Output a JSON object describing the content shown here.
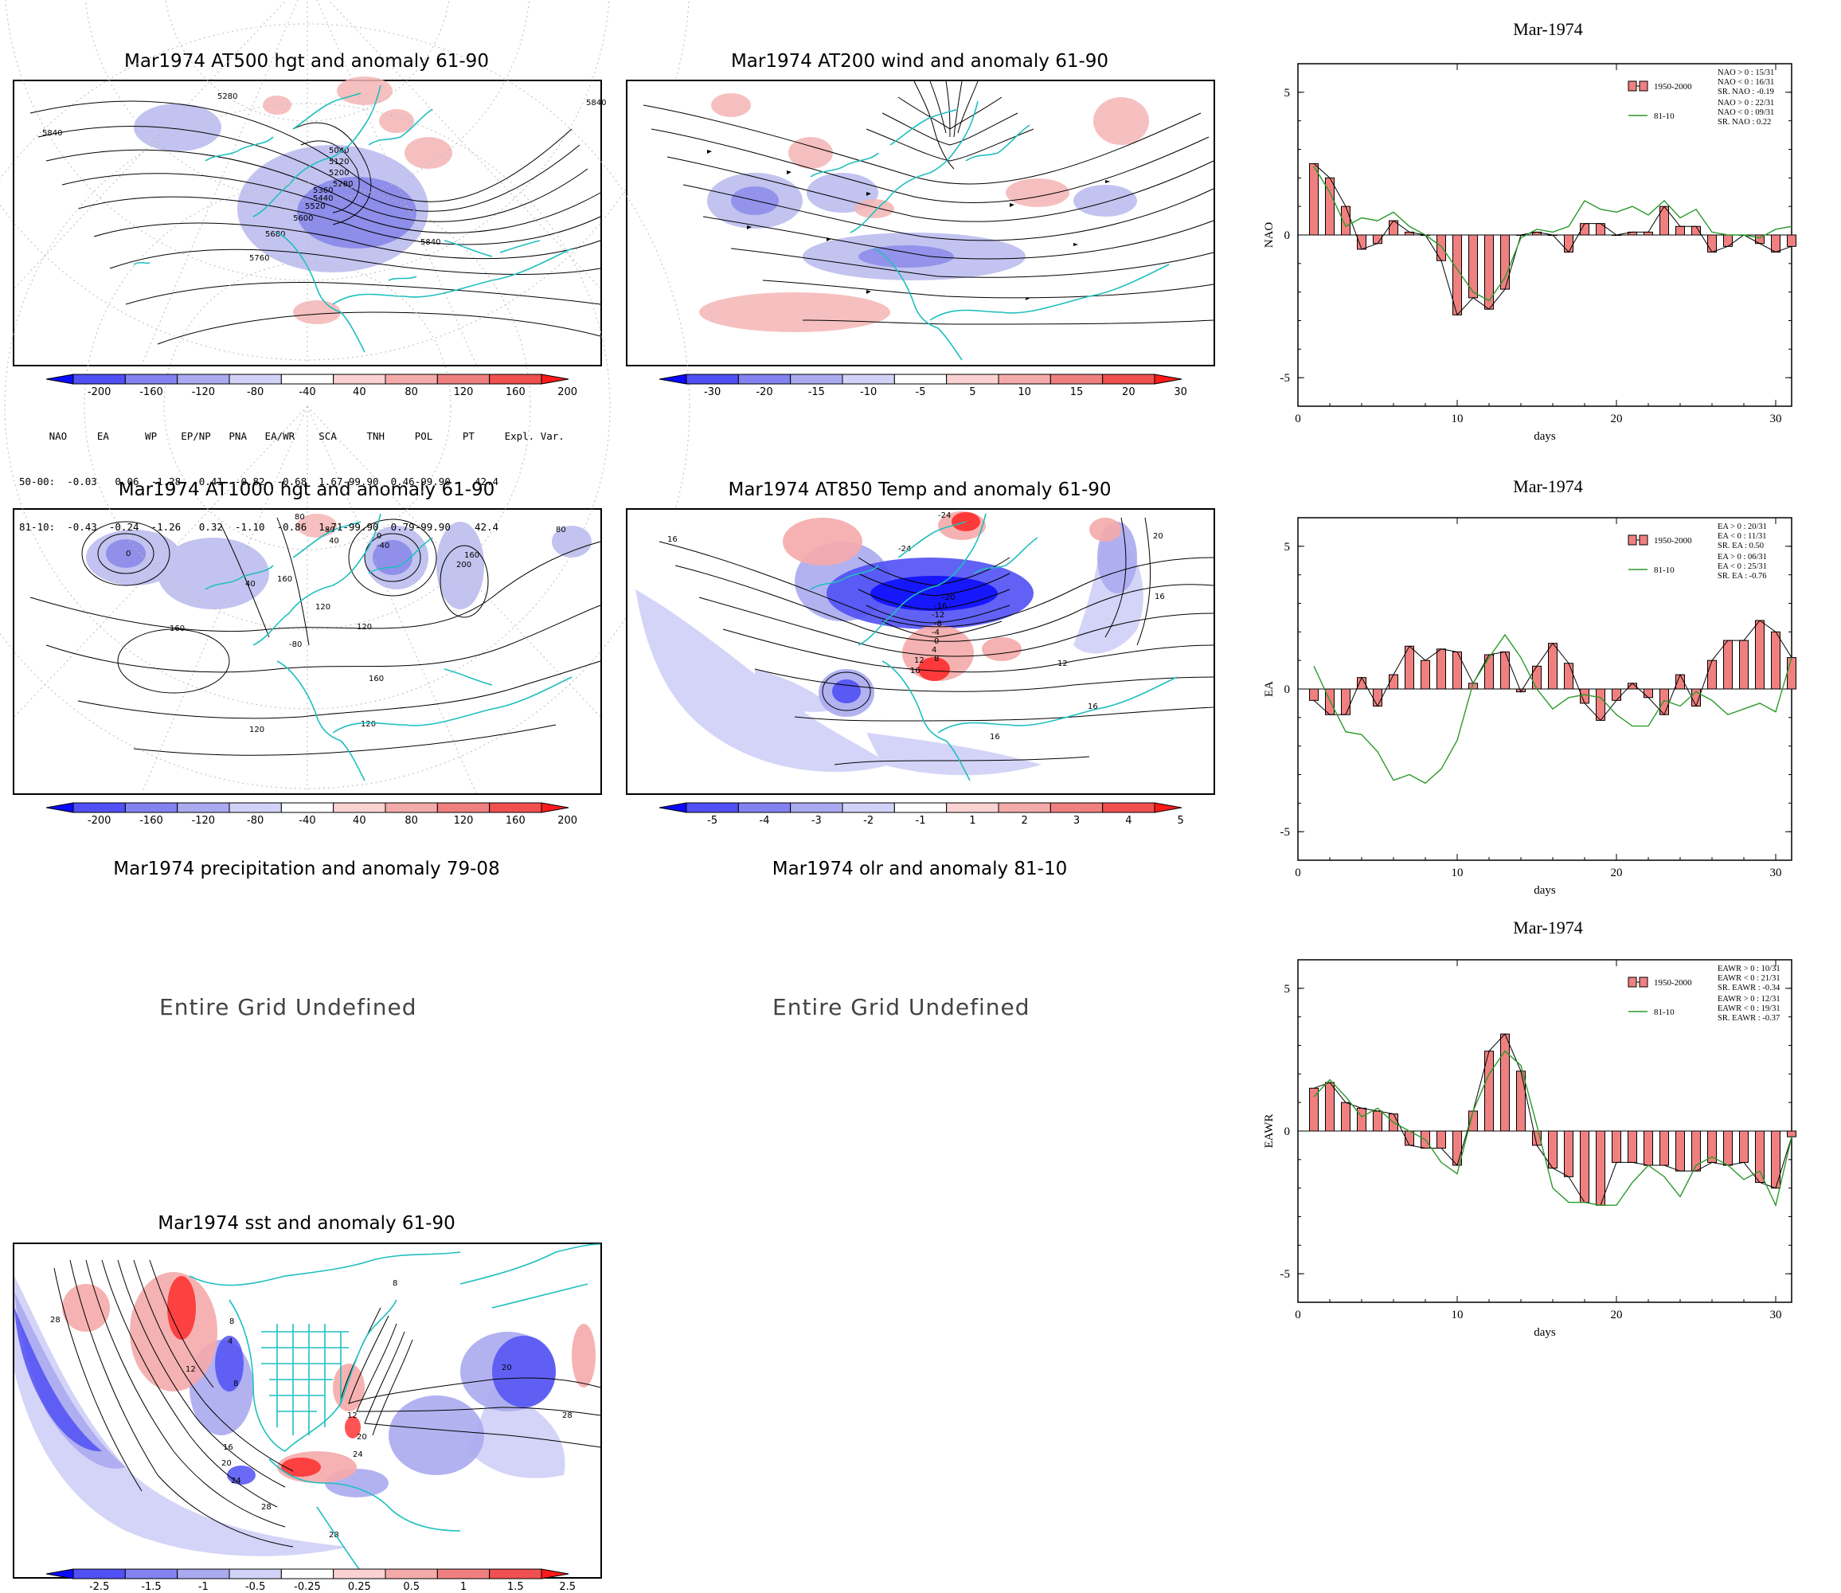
{
  "maps": {
    "z500": {
      "title": "Mar1974 AT500 hgt and anomaly 61-90",
      "contour_labels": [
        "5280",
        "5840",
        "5040",
        "5120",
        "5200",
        "5280",
        "5360",
        "5440",
        "5520",
        "5600",
        "5680",
        "5760",
        "5840",
        "5840"
      ]
    },
    "wind200": {
      "title": "Mar1974 AT200 wind and anomaly 61-90"
    },
    "z1000": {
      "title": "Mar1974 AT1000 hgt and anomaly 61-90",
      "contour_labels": [
        "0",
        "80",
        "80",
        "40",
        "0",
        "-40",
        "160",
        "200",
        "40",
        "160",
        "120",
        "120",
        "-80",
        "160",
        "80",
        "120",
        "120",
        "160"
      ]
    },
    "t850": {
      "title": "Mar1974 AT850 Temp and anomaly 61-90",
      "contour_labels": [
        "16",
        "-24",
        "-24",
        "20",
        "-20",
        "-16",
        "-12",
        "-8",
        "-4",
        "0",
        "4",
        "8",
        "12",
        "16",
        "12",
        "16",
        "16",
        "16"
      ]
    },
    "precip": {
      "title": "Mar1974 precipitation and anomaly 79-08",
      "message": "Entire Grid Undefined"
    },
    "olr": {
      "title": "Mar1974 olr and anomaly 81-10",
      "message": "Entire Grid Undefined"
    },
    "sst": {
      "title": "Mar1974 sst and anomaly 61-90",
      "contour_labels": [
        "28",
        "8",
        "12",
        "4",
        "8",
        "16",
        "20",
        "24",
        "28",
        "12",
        "20",
        "24",
        "28",
        "8",
        "20",
        "28"
      ]
    }
  },
  "colorbars": {
    "hgt": [
      "-200",
      "-160",
      "-120",
      "-80",
      "-40",
      "40",
      "80",
      "120",
      "160",
      "200"
    ],
    "wind": [
      "-30",
      "-20",
      "-15",
      "-10",
      "-5",
      "5",
      "10",
      "15",
      "20",
      "30"
    ],
    "temp": [
      "-5",
      "-4",
      "-3",
      "-2",
      "-1",
      "1",
      "2",
      "3",
      "4",
      "5"
    ],
    "sst": [
      "-2.5",
      "-1.5",
      "-1",
      "-0.5",
      "-0.25",
      "0.25",
      "0.5",
      "1",
      "1.5",
      "2.5"
    ]
  },
  "colorbar_colors": [
    "#0a0aff",
    "#5050f5",
    "#8282f0",
    "#aaaaf0",
    "#d2d2f8",
    "#ffffff",
    "#fad2d2",
    "#f5aaaa",
    "#f08080",
    "#f05050",
    "#ff1a1a"
  ],
  "index_table": {
    "header": "     NAO     EA      WP    EP/NP   PNA   EA/WR    SCA     TNH     POL     PT     Expl. Var.",
    "row1": "50-00:  -0.03   0.06  -1.28   0.41  -0.82  -0.68  1.67-99.90  0.46-99.90    42.4",
    "row2": "81-10:  -0.43  -0.24  -1.26   0.32  -1.10  -0.86  1.71-99.90  0.79-99.90    42.4"
  },
  "chart_data": [
    {
      "type": "bar",
      "title": "Mar-1974",
      "xlabel": "days",
      "ylabel": "NAO",
      "xlim": [
        0,
        31
      ],
      "ylim": [
        -6,
        6
      ],
      "xticks": [
        "0",
        "10",
        "20",
        "30"
      ],
      "yticks": [
        "5",
        "0",
        "-5"
      ],
      "legend": {
        "bar": "1950-2000",
        "line": "81-10",
        "stats_bar": [
          "NAO > 0 : 15/31",
          "NAO < 0 : 16/31",
          "SR. NAO : -0.19"
        ],
        "stats_line": [
          "NAO > 0 : 22/31",
          "NAO < 0 : 09/31",
          "SR. NAO :  0.22"
        ]
      },
      "x": [
        1,
        2,
        3,
        4,
        5,
        6,
        7,
        8,
        9,
        10,
        11,
        12,
        13,
        14,
        15,
        16,
        17,
        18,
        19,
        20,
        21,
        22,
        23,
        24,
        25,
        26,
        27,
        28,
        29,
        30,
        31
      ],
      "series": [
        {
          "name": "1950-2000",
          "values": [
            2.5,
            2.0,
            1.0,
            -0.5,
            -0.3,
            0.5,
            0.1,
            0.0,
            -0.9,
            -2.8,
            -2.2,
            -2.6,
            -1.9,
            0.0,
            0.1,
            0.0,
            -0.6,
            0.4,
            0.4,
            0.0,
            0.1,
            0.1,
            1.0,
            0.3,
            0.3,
            -0.6,
            -0.4,
            0.0,
            -0.3,
            -0.6,
            -0.4
          ]
        },
        {
          "name": "81-10",
          "values": [
            2.4,
            1.5,
            0.3,
            0.6,
            0.5,
            0.8,
            0.3,
            0.0,
            -0.4,
            -1.2,
            -2.0,
            -2.3,
            -1.5,
            -0.1,
            0.2,
            0.1,
            0.3,
            1.2,
            0.9,
            0.8,
            1.0,
            0.7,
            1.2,
            0.6,
            0.9,
            0.1,
            0.0,
            0.0,
            -0.1,
            0.2,
            0.3
          ]
        }
      ]
    },
    {
      "type": "bar",
      "title": "Mar-1974",
      "xlabel": "days",
      "ylabel": "EA",
      "xlim": [
        0,
        31
      ],
      "ylim": [
        -6,
        6
      ],
      "xticks": [
        "0",
        "10",
        "20",
        "30"
      ],
      "yticks": [
        "5",
        "0",
        "-5"
      ],
      "legend": {
        "bar": "1950-2000",
        "line": "81-10",
        "stats_bar": [
          "EA > 0 : 20/31",
          "EA < 0 : 11/31",
          "SR. EA :  0.50"
        ],
        "stats_line": [
          "EA > 0 : 06/31",
          "EA < 0 : 25/31",
          "SR. EA : -0.76"
        ]
      },
      "x": [
        1,
        2,
        3,
        4,
        5,
        6,
        7,
        8,
        9,
        10,
        11,
        12,
        13,
        14,
        15,
        16,
        17,
        18,
        19,
        20,
        21,
        22,
        23,
        24,
        25,
        26,
        27,
        28,
        29,
        30,
        31
      ],
      "series": [
        {
          "name": "1950-2000",
          "values": [
            -0.4,
            -0.9,
            -0.9,
            0.4,
            -0.6,
            0.5,
            1.5,
            1.0,
            1.4,
            1.3,
            0.2,
            1.2,
            1.3,
            -0.1,
            0.8,
            1.6,
            0.9,
            -0.5,
            -1.1,
            -0.4,
            0.2,
            -0.3,
            -0.9,
            0.5,
            -0.6,
            1.0,
            1.7,
            1.7,
            2.4,
            2.0,
            1.1
          ]
        },
        {
          "name": "81-10",
          "values": [
            0.8,
            -0.4,
            -1.5,
            -1.6,
            -2.2,
            -3.2,
            -3.0,
            -3.3,
            -2.8,
            -1.8,
            0.2,
            1.1,
            1.9,
            1.1,
            0.0,
            -0.7,
            -0.3,
            -0.2,
            -0.3,
            -0.9,
            -1.3,
            -1.3,
            -0.4,
            -0.6,
            -0.1,
            -0.4,
            -0.9,
            -0.7,
            -0.5,
            -0.8,
            1.1
          ]
        }
      ]
    },
    {
      "type": "bar",
      "title": "Mar-1974",
      "xlabel": "days",
      "ylabel": "EAWR",
      "xlim": [
        0,
        31
      ],
      "ylim": [
        -6,
        6
      ],
      "xticks": [
        "0",
        "10",
        "20",
        "30"
      ],
      "yticks": [
        "5",
        "0",
        "-5"
      ],
      "legend": {
        "bar": "1950-2000",
        "line": "81-10",
        "stats_bar": [
          "EAWR > 0 : 10/31",
          "EAWR < 0 : 21/31",
          "SR. EAWR : -0.34"
        ],
        "stats_line": [
          "EAWR > 0 : 12/31",
          "EAWR < 0 : 19/31",
          "SR. EAWR : -0.37"
        ]
      },
      "x": [
        1,
        2,
        3,
        4,
        5,
        6,
        7,
        8,
        9,
        10,
        11,
        12,
        13,
        14,
        15,
        16,
        17,
        18,
        19,
        20,
        21,
        22,
        23,
        24,
        25,
        26,
        27,
        28,
        29,
        30,
        31
      ],
      "series": [
        {
          "name": "1950-2000",
          "values": [
            1.5,
            1.7,
            1.0,
            0.8,
            0.7,
            0.6,
            -0.5,
            -0.6,
            -0.6,
            -1.2,
            0.7,
            2.8,
            3.4,
            2.1,
            -0.5,
            -1.3,
            -1.6,
            -2.5,
            -2.6,
            -1.1,
            -1.1,
            -1.2,
            -1.2,
            -1.4,
            -1.4,
            -1.1,
            -1.2,
            -1.1,
            -1.8,
            -2.0,
            -0.2
          ]
        },
        {
          "name": "81-10",
          "values": [
            1.2,
            1.8,
            1.2,
            0.5,
            0.8,
            0.3,
            0.0,
            -0.3,
            -1.1,
            -1.5,
            0.7,
            2.0,
            2.8,
            2.3,
            0.2,
            -2.0,
            -2.5,
            -2.5,
            -2.6,
            -2.6,
            -1.8,
            -1.2,
            -1.6,
            -2.3,
            -1.2,
            -0.9,
            -1.2,
            -1.7,
            -1.4,
            -2.6,
            -0.2
          ]
        }
      ]
    }
  ]
}
